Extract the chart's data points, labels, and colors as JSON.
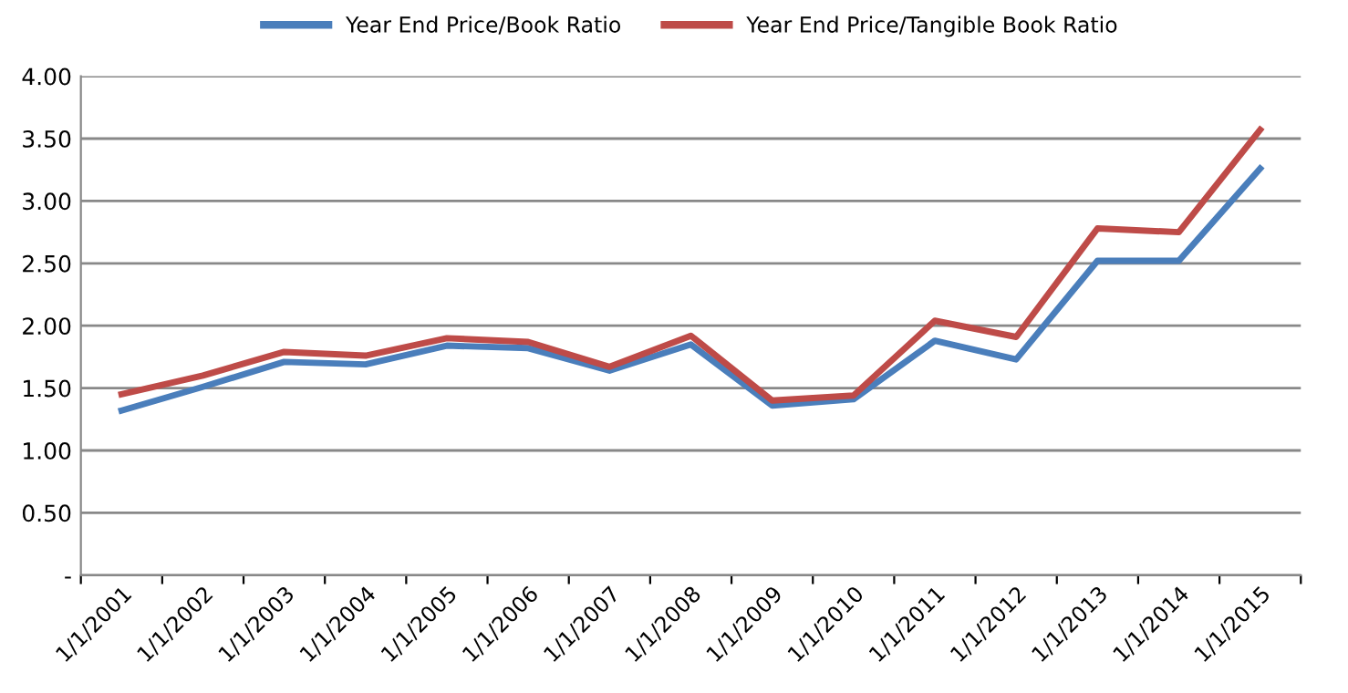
{
  "chart_data": {
    "type": "line",
    "categories": [
      "1/1/2001",
      "1/1/2002",
      "1/1/2003",
      "1/1/2004",
      "1/1/2005",
      "1/1/2006",
      "1/1/2007",
      "1/1/2008",
      "1/1/2009",
      "1/1/2010",
      "1/1/2011",
      "1/1/2012",
      "1/1/2013",
      "1/1/2014",
      "1/1/2015"
    ],
    "series": [
      {
        "name": "Year End Price/Book Ratio",
        "color": "#4a7ebb",
        "values": [
          1.32,
          1.51,
          1.71,
          1.69,
          1.84,
          1.82,
          1.64,
          1.85,
          1.36,
          1.41,
          1.88,
          1.73,
          2.52,
          2.52,
          3.26
        ]
      },
      {
        "name": "Year End Price/Tangible Book Ratio",
        "color": "#be4b48",
        "values": [
          1.45,
          1.6,
          1.79,
          1.76,
          1.9,
          1.87,
          1.67,
          1.92,
          1.4,
          1.44,
          2.04,
          1.91,
          2.78,
          2.75,
          3.57
        ]
      }
    ],
    "ylim": [
      0,
      4
    ],
    "yticks": [
      {
        "value": 0,
        "label": "-"
      },
      {
        "value": 0.5,
        "label": "0.50"
      },
      {
        "value": 1,
        "label": "1.00"
      },
      {
        "value": 1.5,
        "label": "1.50"
      },
      {
        "value": 2,
        "label": "2.00"
      },
      {
        "value": 2.5,
        "label": "2.50"
      },
      {
        "value": 3,
        "label": "3.00"
      },
      {
        "value": 3.5,
        "label": "3.50"
      },
      {
        "value": 4,
        "label": "4.00"
      }
    ],
    "grid": "y",
    "legend": "top",
    "marker": "none",
    "line_style": "solid"
  }
}
